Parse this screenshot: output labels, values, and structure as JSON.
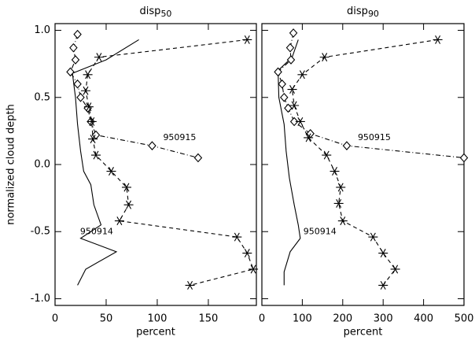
{
  "chart_data": [
    {
      "type": "line",
      "title": "disp",
      "title_sub": "50",
      "xlabel": "percent",
      "ylabel": "normalized cloud depth",
      "xlim": [
        0,
        197
      ],
      "xticks": [
        0,
        50,
        100,
        150
      ],
      "ylim": [
        -1.05,
        1.05
      ],
      "yticks": [
        {
          "value": -1,
          "label": "-1.0"
        },
        {
          "value": -0.5,
          "label": "-0.5"
        },
        {
          "value": 0,
          "label": "0.0"
        },
        {
          "value": 0.5,
          "label": "0.5"
        },
        {
          "value": 1,
          "label": "1.0"
        }
      ],
      "series": [
        {
          "color": "#000000",
          "marker": "none",
          "linestyle": "solid",
          "x": [
            82,
            50,
            17,
            20,
            22,
            25,
            28,
            35,
            38,
            45,
            25,
            60,
            30,
            22
          ],
          "values": [
            0.93,
            0.78,
            0.68,
            0.5,
            0.3,
            0.1,
            -0.05,
            -0.15,
            -0.3,
            -0.45,
            -0.55,
            -0.65,
            -0.78,
            -0.9
          ]
        },
        {
          "name": "950915",
          "color": "#000000",
          "marker": "diamond",
          "linestyle": "dashdot",
          "x": [
            22,
            18,
            20,
            15,
            22,
            25,
            32,
            35,
            40,
            95,
            140
          ],
          "values": [
            0.97,
            0.87,
            0.78,
            0.69,
            0.6,
            0.5,
            0.42,
            0.32,
            0.22,
            0.14,
            0.05
          ]
        },
        {
          "name": "950914",
          "color": "#000000",
          "marker": "star",
          "linestyle": "dashed",
          "x": [
            188,
            43,
            32,
            30,
            33,
            36,
            37,
            40,
            55,
            70,
            72,
            63,
            178,
            188,
            194,
            132
          ],
          "values": [
            0.93,
            0.8,
            0.67,
            0.55,
            0.43,
            0.32,
            0.19,
            0.07,
            -0.05,
            -0.17,
            -0.3,
            -0.42,
            -0.54,
            -0.66,
            -0.78,
            -0.9
          ]
        }
      ]
    },
    {
      "type": "line",
      "title": "disp",
      "title_sub": "90",
      "xlabel": "percent",
      "xlim": [
        0,
        500
      ],
      "xticks": [
        0,
        100,
        200,
        300,
        400,
        500
      ],
      "ylim": [
        -1.05,
        1.05
      ],
      "yticks": [
        -1,
        -0.5,
        0,
        0.5,
        1
      ],
      "series": [
        {
          "color": "#000000",
          "marker": "none",
          "linestyle": "solid",
          "x": [
            90,
            75,
            40,
            42,
            55,
            60,
            68,
            80,
            90,
            95,
            70,
            55,
            55
          ],
          "values": [
            0.93,
            0.8,
            0.7,
            0.5,
            0.3,
            0.1,
            -0.1,
            -0.3,
            -0.45,
            -0.55,
            -0.65,
            -0.8,
            -0.9
          ]
        },
        {
          "name": "950915",
          "color": "#000000",
          "marker": "diamond",
          "linestyle": "dashdot",
          "x": [
            78,
            70,
            72,
            40,
            50,
            55,
            65,
            80,
            120,
            210,
            500
          ],
          "values": [
            0.98,
            0.87,
            0.78,
            0.69,
            0.6,
            0.5,
            0.42,
            0.32,
            0.23,
            0.14,
            0.05
          ]
        },
        {
          "name": "950914",
          "color": "#000000",
          "marker": "star",
          "linestyle": "dashed",
          "x": [
            435,
            155,
            100,
            75,
            80,
            95,
            115,
            160,
            180,
            195,
            190,
            200,
            275,
            300,
            330,
            300
          ],
          "values": [
            0.93,
            0.8,
            0.67,
            0.56,
            0.44,
            0.32,
            0.2,
            0.07,
            -0.05,
            -0.17,
            -0.29,
            -0.42,
            -0.54,
            -0.66,
            -0.78,
            -0.9
          ]
        }
      ]
    }
  ]
}
